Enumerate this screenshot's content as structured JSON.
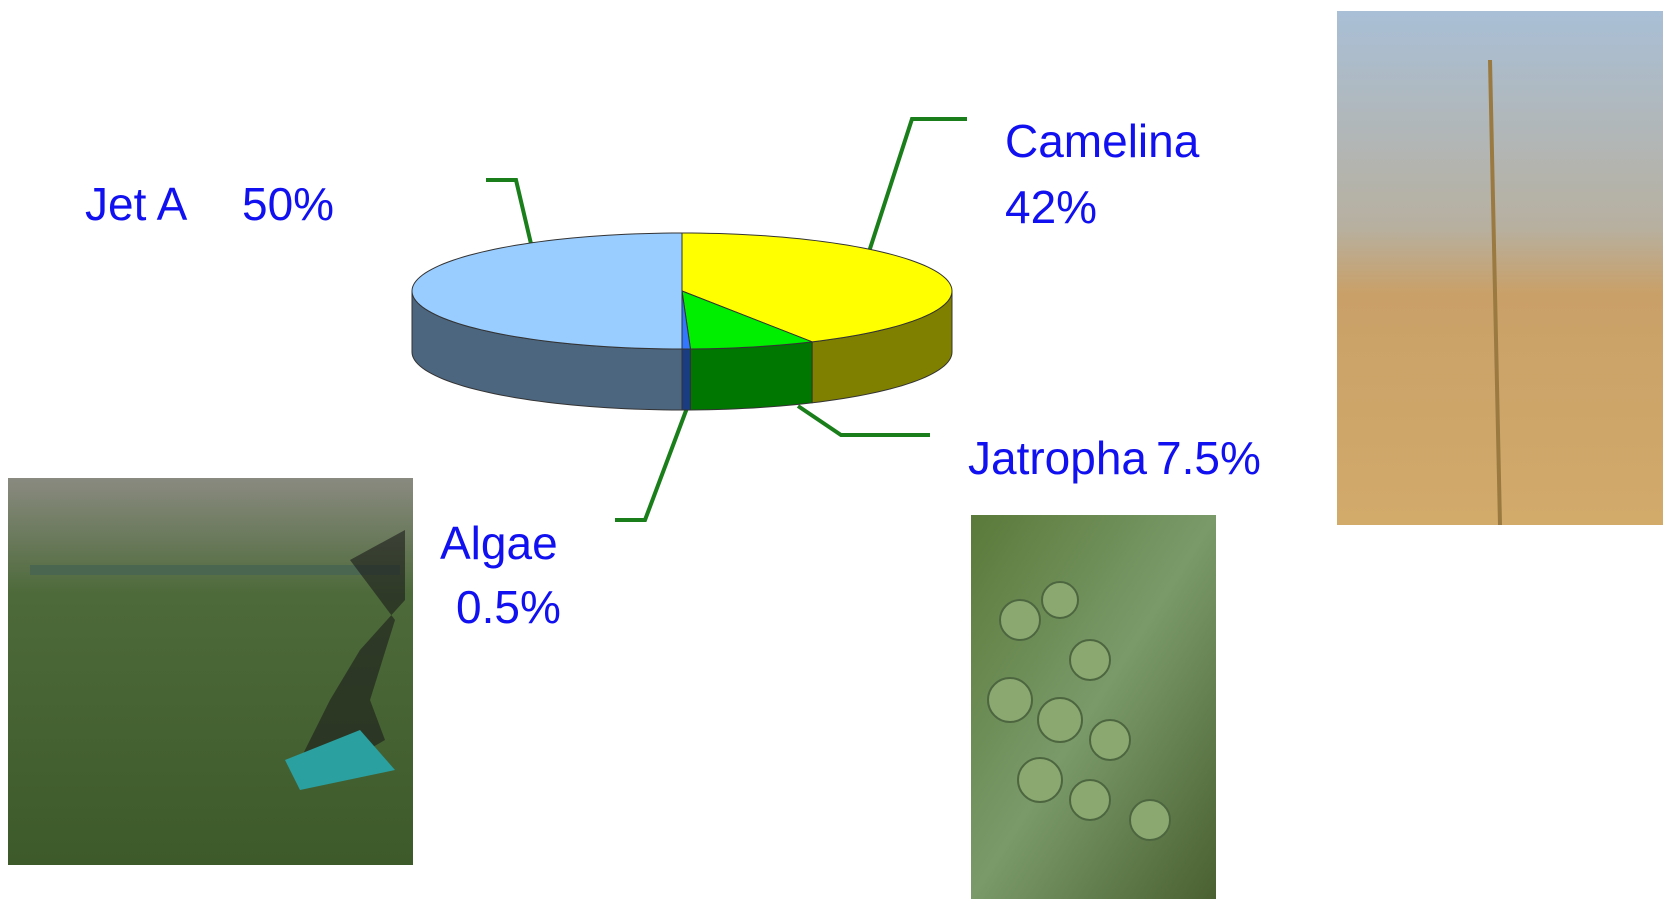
{
  "chart_data": {
    "type": "pie3d",
    "categories": [
      "Camelina",
      "Jatropha",
      "Algae",
      "Jet A"
    ],
    "values": [
      42,
      7.5,
      0.5,
      50
    ],
    "value_labels": [
      "42%",
      "7.5%",
      "0.5%",
      "50%"
    ],
    "colors": [
      "#ffff00",
      "#00ee00",
      "#3377ff",
      "#99ccff"
    ]
  }
}
